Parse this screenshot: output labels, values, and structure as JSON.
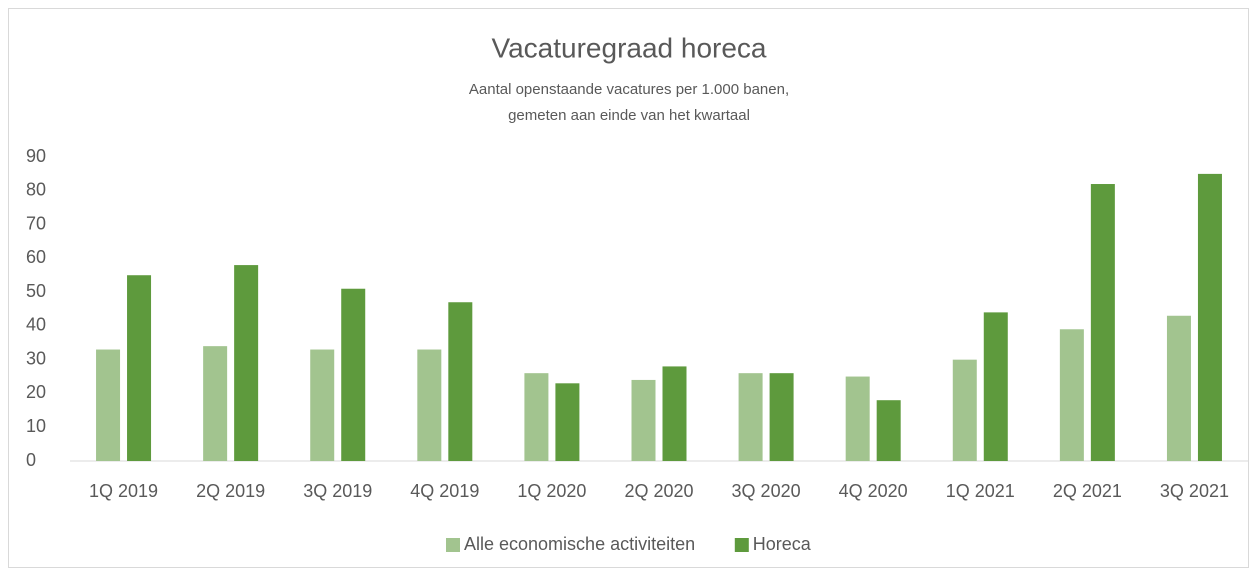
{
  "chart_data": {
    "type": "bar",
    "title": "Vacaturegraad horeca",
    "subtitle": [
      "Aantal openstaande vacatures per 1.000 banen,",
      "gemeten aan einde van het kwartaal"
    ],
    "categories": [
      "1Q 2019",
      "2Q 2019",
      "3Q 2019",
      "4Q 2019",
      "1Q 2020",
      "2Q 2020",
      "3Q 2020",
      "4Q 2020",
      "1Q 2021",
      "2Q 2021",
      "3Q 2021"
    ],
    "series": [
      {
        "name": "Alle economische activiteiten",
        "color": "#a2c48f",
        "values": [
          33,
          34,
          33,
          33,
          26,
          24,
          26,
          25,
          30,
          39,
          43
        ]
      },
      {
        "name": "Horeca",
        "color": "#5e9a3d",
        "values": [
          55,
          58,
          51,
          47,
          23,
          28,
          26,
          18,
          44,
          82,
          85
        ]
      }
    ],
    "ylim": [
      0,
      90
    ],
    "yticks": [
      0,
      10,
      20,
      30,
      40,
      50,
      60,
      70,
      80,
      90
    ],
    "grid": false,
    "legend": "bottom"
  }
}
